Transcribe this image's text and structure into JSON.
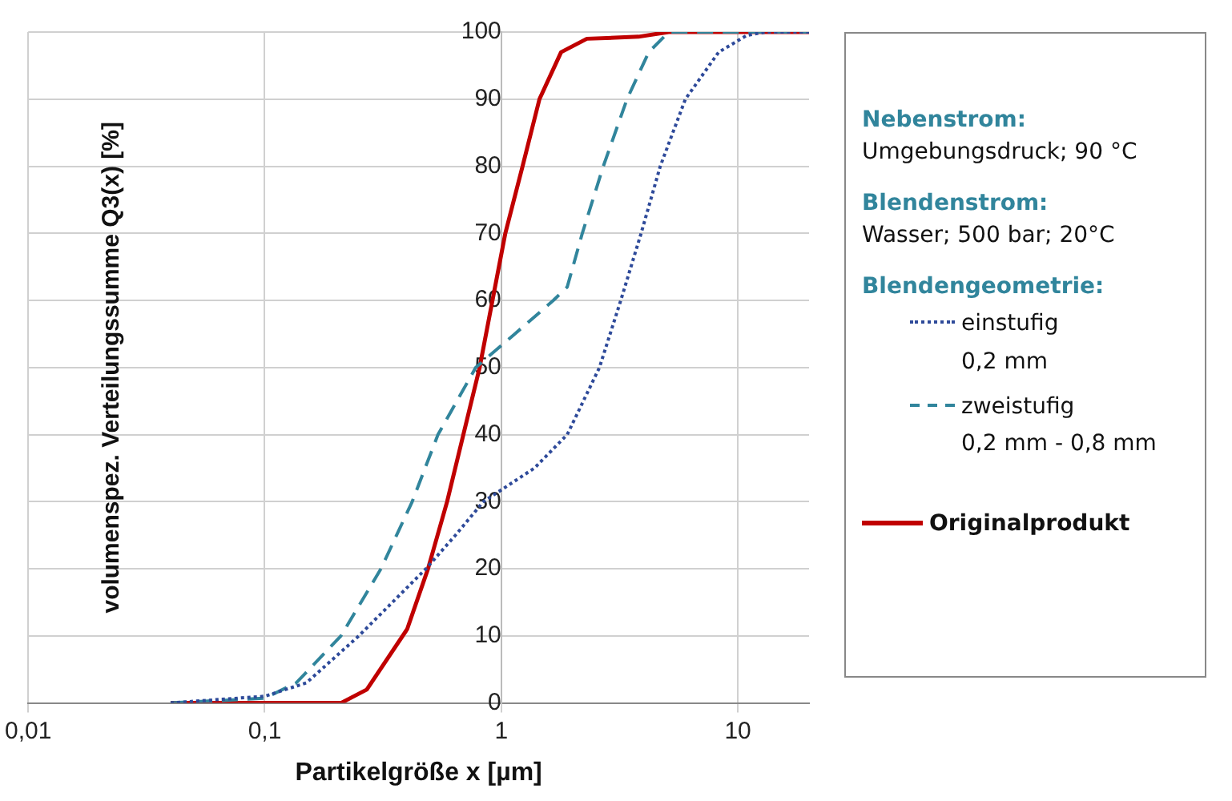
{
  "chart_data": {
    "type": "line",
    "xlabel": "Partikelgröße x [µm]",
    "ylabel": "volumenspez. Verteilungssumme Q3(x) [%]",
    "log": "x",
    "grid": true,
    "legend": "right",
    "marker": "none",
    "legend_title": "Blendengeometrie:",
    "annotations": [
      "Nebenstrom:",
      "Umgebungsdruck; 90 °C",
      "Blendenstrom:",
      "Wasser; 500 bar; 20°C"
    ],
    "xlim": [
      0.01,
      20
    ],
    "xticks": [
      {
        "value": 0.01,
        "label": "0,01"
      },
      {
        "value": 0.1,
        "label": "0,1"
      },
      {
        "value": 1,
        "label": "1"
      },
      {
        "value": 10,
        "label": "10"
      }
    ],
    "ylim": [
      0,
      100
    ],
    "yticks": [
      0,
      10,
      20,
      30,
      40,
      50,
      60,
      70,
      80,
      90,
      100
    ],
    "series": [
      {
        "name": "einstufig\n0,2 mm",
        "color": "#2e4a9a",
        "line_style": "dotted",
        "x": [
          0.04,
          0.1,
          0.15,
          0.25,
          0.48,
          0.64,
          0.84,
          1.38,
          1.9,
          2.6,
          3.2,
          3.9,
          4.7,
          6.0,
          8.3,
          10.9,
          13.1,
          20
        ],
        "values": [
          0,
          1,
          3,
          10,
          20,
          25,
          30,
          35,
          40,
          50,
          60,
          70,
          80,
          90,
          97,
          99.5,
          100,
          100
        ]
      },
      {
        "name": "zweistufig\n0,2 mm - 0,8 mm",
        "color": "#31859c",
        "line_style": "dashed",
        "x": [
          0.04,
          0.1,
          0.136,
          0.21,
          0.31,
          0.42,
          0.54,
          0.78,
          1.14,
          1.66,
          1.9,
          2.2,
          2.7,
          3.4,
          4.2,
          5.1,
          20
        ],
        "values": [
          0,
          0.7,
          3,
          10,
          20,
          30,
          40,
          50,
          55,
          60,
          62,
          70,
          80,
          90,
          97,
          100,
          100
        ]
      },
      {
        "name": "Originalprodukt",
        "color": "#c00000",
        "line_style": "solid",
        "x": [
          0.04,
          0.21,
          0.27,
          0.4,
          0.49,
          0.59,
          0.81,
          1.04,
          1.23,
          1.45,
          1.79,
          2.3,
          3.8,
          5.1,
          20
        ],
        "values": [
          0,
          0,
          2,
          11,
          20,
          30,
          50,
          70,
          80,
          90,
          97,
          99,
          99.3,
          100,
          100
        ]
      }
    ]
  }
}
